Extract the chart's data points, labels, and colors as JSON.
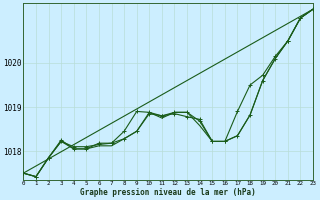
{
  "title": "Graphe pression niveau de la mer (hPa)",
  "bg_color": "#cceeff",
  "grid_color": "#b8ddd8",
  "line_color": "#1a5c1a",
  "x_min": 0,
  "x_max": 23,
  "y_min": 1017.35,
  "y_max": 1021.35,
  "yticks": [
    1018,
    1019,
    1020
  ],
  "xticks": [
    0,
    1,
    2,
    3,
    4,
    5,
    6,
    7,
    8,
    9,
    10,
    11,
    12,
    13,
    14,
    15,
    16,
    17,
    18,
    19,
    20,
    21,
    22,
    23
  ],
  "line1_y": [
    1017.5,
    1017.42,
    1017.85,
    1018.22,
    1018.1,
    1018.1,
    1018.15,
    1018.18,
    1018.28,
    1018.45,
    1018.85,
    1018.8,
    1018.88,
    1018.88,
    1018.68,
    1018.22,
    1018.22,
    1018.35,
    1018.82,
    1019.6,
    1020.1,
    1020.5,
    1021.02,
    1021.22
  ],
  "line2_y": [
    1017.5,
    1017.42,
    1017.85,
    1018.25,
    1018.05,
    1018.05,
    1018.18,
    1018.18,
    1018.45,
    1018.9,
    1018.88,
    1018.8,
    1018.85,
    1018.78,
    1018.72,
    1018.22,
    1018.22,
    1018.9,
    1019.5,
    1019.72,
    1020.15,
    1020.5,
    1021.02,
    1021.22
  ],
  "line3_y": [
    1017.5,
    1017.42,
    1017.85,
    1018.22,
    1018.05,
    1018.05,
    1018.12,
    1018.12,
    1018.28,
    1018.45,
    1018.88,
    1018.75,
    1018.88,
    1018.88,
    1018.58,
    1018.22,
    1018.22,
    1018.35,
    1018.82,
    1019.6,
    1020.1,
    1020.5,
    1021.02,
    1021.22
  ],
  "line4_straight": [
    1017.5,
    1021.22
  ],
  "line4_x": [
    0,
    23
  ]
}
